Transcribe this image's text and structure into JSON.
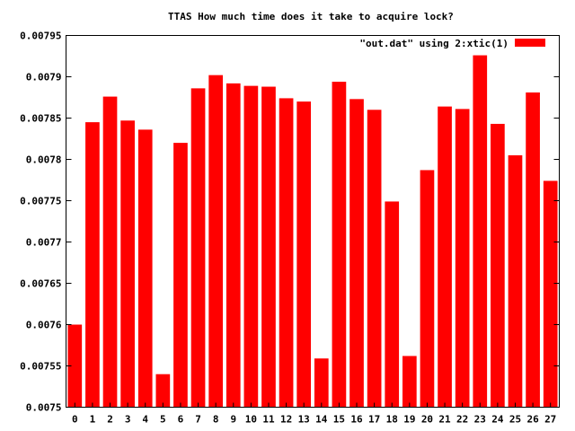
{
  "chart_data": {
    "type": "bar",
    "title": "TTAS How much time does it take to acquire lock?",
    "xlabel": "",
    "ylabel": "",
    "categories": [
      "0",
      "1",
      "2",
      "3",
      "4",
      "5",
      "6",
      "7",
      "8",
      "9",
      "10",
      "11",
      "12",
      "13",
      "14",
      "15",
      "16",
      "17",
      "18",
      "19",
      "20",
      "21",
      "22",
      "23",
      "24",
      "25",
      "26",
      "27"
    ],
    "series": [
      {
        "name": "\"out.dat\" using 2:xtic(1)",
        "color": "#ff0000",
        "values": [
          0.0076,
          0.007845,
          0.007876,
          0.007847,
          0.007836,
          0.00754,
          0.00782,
          0.007886,
          0.007902,
          0.007892,
          0.007889,
          0.007888,
          0.007874,
          0.00787,
          0.007559,
          0.007894,
          0.007873,
          0.00786,
          0.007749,
          0.007562,
          0.007787,
          0.007864,
          0.007861,
          0.007926,
          0.007843,
          0.007805,
          0.007881,
          0.007774
        ]
      }
    ],
    "ylim": [
      0.0075,
      0.00795
    ],
    "yticks": [
      "0.0075",
      "0.00755",
      "0.0076",
      "0.00765",
      "0.0077",
      "0.00775",
      "0.0078",
      "0.00785",
      "0.0079",
      "0.00795"
    ],
    "grid": false,
    "legend": "top-right"
  }
}
